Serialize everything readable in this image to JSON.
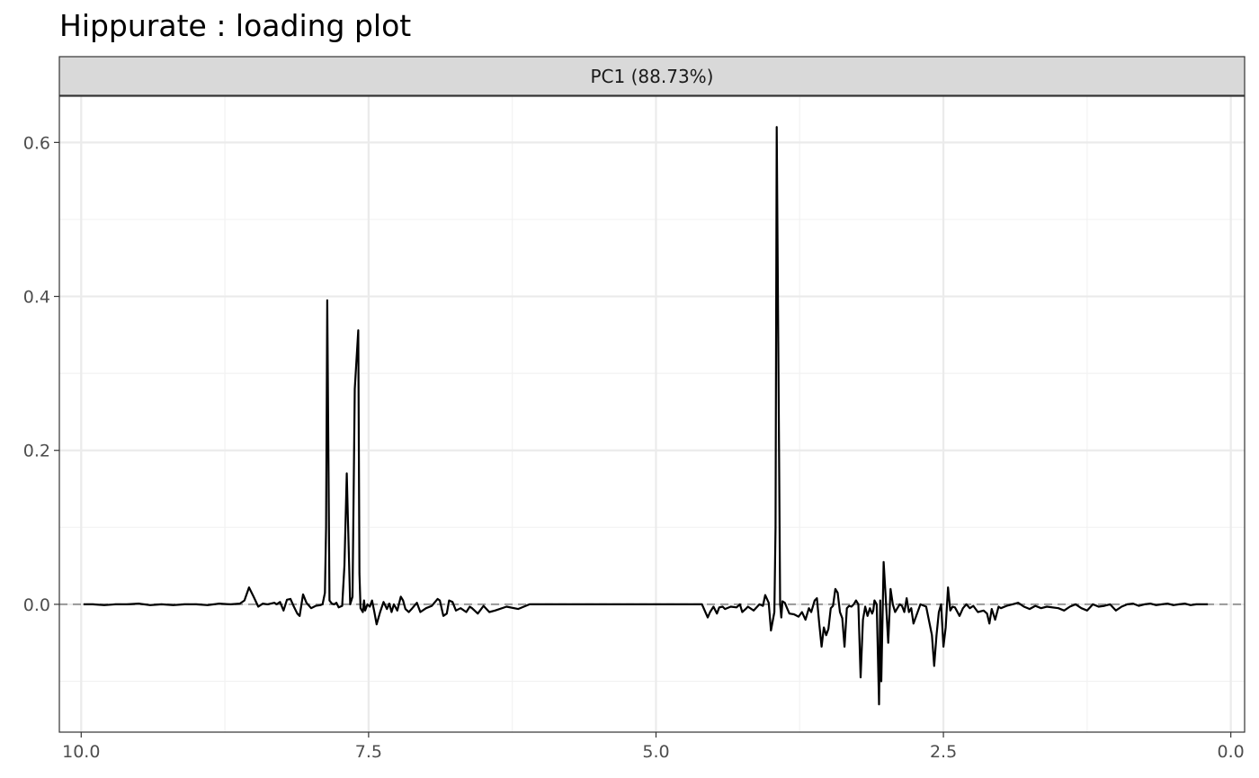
{
  "chart_data": {
    "type": "line",
    "title": "Hippurate : loading plot",
    "facet_label": "PC1 (88.73%)",
    "xlabel": "",
    "ylabel": "",
    "x_reversed": true,
    "xlim": [
      10.19,
      -0.12
    ],
    "ylim": [
      -0.166,
      0.66
    ],
    "x_ticks": [
      10.0,
      7.5,
      5.0,
      2.5,
      0.0
    ],
    "x_tick_labels": [
      "10.0",
      "7.5",
      "5.0",
      "2.5",
      "0.0"
    ],
    "x_minor_ticks": [
      8.75,
      6.25,
      3.75,
      1.25
    ],
    "y_ticks": [
      0.0,
      0.2,
      0.4,
      0.6
    ],
    "y_tick_labels": [
      "0.0",
      "0.2",
      "0.4",
      "0.6"
    ],
    "y_minor_ticks": [
      -0.1,
      0.1,
      0.3,
      0.5
    ],
    "grid": true,
    "reference_line": {
      "y": 0,
      "style": "dashed",
      "color": "#999999"
    },
    "colors": {
      "line": "#000000",
      "strip": "#d9d9d9",
      "grid": "#ebebeb",
      "panel_border": "#333333"
    },
    "series": [
      {
        "x": [
          9.98,
          9.9,
          9.8,
          9.7,
          9.6,
          9.5,
          9.4,
          9.3,
          9.2,
          9.1,
          9.0,
          8.9,
          8.8,
          8.7,
          8.62,
          8.58,
          8.54,
          8.5,
          8.46,
          8.42,
          8.38,
          8.32,
          8.3,
          8.27,
          8.24,
          8.21,
          8.18,
          8.15,
          8.12,
          8.1,
          8.07,
          8.04,
          8.0,
          7.96,
          7.92,
          7.9,
          7.88,
          7.87,
          7.86,
          7.84,
          7.82,
          7.8,
          7.78,
          7.76,
          7.73,
          7.71,
          7.69,
          7.68,
          7.66,
          7.64,
          7.62,
          7.59,
          7.58,
          7.57,
          7.55,
          7.54,
          7.53,
          7.51,
          7.49,
          7.47,
          7.45,
          7.43,
          7.4,
          7.37,
          7.34,
          7.32,
          7.3,
          7.28,
          7.25,
          7.22,
          7.2,
          7.18,
          7.15,
          7.12,
          7.08,
          7.05,
          7.0,
          6.95,
          6.9,
          6.88,
          6.85,
          6.82,
          6.8,
          6.77,
          6.74,
          6.7,
          6.65,
          6.62,
          6.6,
          6.55,
          6.5,
          6.45,
          6.4,
          6.3,
          6.2,
          6.1,
          6.05,
          6.0,
          5.5,
          5.0,
          4.6,
          4.55,
          4.53,
          4.5,
          4.47,
          4.45,
          4.42,
          4.4,
          4.35,
          4.3,
          4.27,
          4.25,
          4.22,
          4.2,
          4.15,
          4.1,
          4.07,
          4.05,
          4.02,
          4.0,
          3.97,
          3.96,
          3.95,
          3.93,
          3.92,
          3.91,
          3.9,
          3.88,
          3.86,
          3.84,
          3.8,
          3.76,
          3.73,
          3.7,
          3.67,
          3.65,
          3.62,
          3.6,
          3.58,
          3.56,
          3.54,
          3.52,
          3.5,
          3.48,
          3.46,
          3.44,
          3.42,
          3.4,
          3.38,
          3.36,
          3.34,
          3.32,
          3.3,
          3.28,
          3.26,
          3.24,
          3.22,
          3.2,
          3.18,
          3.16,
          3.14,
          3.12,
          3.11,
          3.1,
          3.08,
          3.06,
          3.05,
          3.04,
          3.02,
          3.0,
          2.98,
          2.96,
          2.94,
          2.92,
          2.9,
          2.88,
          2.86,
          2.84,
          2.82,
          2.8,
          2.78,
          2.76,
          2.7,
          2.65,
          2.6,
          2.58,
          2.56,
          2.54,
          2.52,
          2.5,
          2.48,
          2.46,
          2.44,
          2.42,
          2.4,
          2.36,
          2.33,
          2.3,
          2.27,
          2.24,
          2.2,
          2.15,
          2.12,
          2.1,
          2.08,
          2.05,
          2.02,
          2.0,
          1.95,
          1.9,
          1.85,
          1.8,
          1.75,
          1.7,
          1.65,
          1.6,
          1.5,
          1.45,
          1.4,
          1.35,
          1.3,
          1.25,
          1.2,
          1.15,
          1.1,
          1.05,
          1.0,
          0.95,
          0.9,
          0.85,
          0.8,
          0.75,
          0.7,
          0.65,
          0.6,
          0.55,
          0.5,
          0.45,
          0.4,
          0.35,
          0.3,
          0.25,
          0.2
        ],
        "y": [
          0.0,
          0.0,
          -0.001,
          0.0,
          0.0,
          0.001,
          -0.001,
          0.0,
          -0.001,
          0.0,
          0.0,
          -0.001,
          0.001,
          0.0,
          0.001,
          0.005,
          0.022,
          0.01,
          -0.003,
          0.001,
          0.0,
          0.002,
          0.0,
          0.003,
          -0.008,
          0.006,
          0.007,
          -0.003,
          -0.012,
          -0.015,
          0.013,
          0.002,
          -0.005,
          -0.002,
          -0.001,
          0.0,
          0.015,
          0.1,
          0.395,
          0.005,
          0.001,
          0.0,
          0.002,
          -0.004,
          -0.002,
          0.05,
          0.17,
          0.11,
          0.0,
          0.01,
          0.28,
          0.356,
          0.04,
          -0.005,
          -0.01,
          0.005,
          -0.008,
          0.0,
          -0.003,
          0.005,
          -0.01,
          -0.026,
          -0.01,
          0.003,
          -0.006,
          0.001,
          -0.01,
          0.0,
          -0.008,
          0.01,
          0.005,
          -0.006,
          -0.01,
          -0.005,
          0.002,
          -0.01,
          -0.005,
          -0.002,
          0.007,
          0.005,
          -0.015,
          -0.012,
          0.005,
          0.003,
          -0.008,
          -0.005,
          -0.01,
          -0.003,
          -0.005,
          -0.012,
          -0.002,
          -0.01,
          -0.008,
          -0.003,
          -0.006,
          0.0,
          0.0,
          0.0,
          0.0,
          0.0,
          0.0,
          -0.017,
          -0.01,
          -0.003,
          -0.012,
          -0.004,
          -0.003,
          -0.006,
          -0.003,
          -0.004,
          0.0,
          -0.01,
          -0.006,
          -0.003,
          -0.008,
          0.0,
          -0.002,
          0.012,
          0.002,
          -0.034,
          -0.01,
          0.1,
          0.62,
          0.2,
          0.0,
          -0.017,
          0.004,
          0.002,
          -0.005,
          -0.012,
          -0.013,
          -0.016,
          -0.01,
          -0.02,
          -0.005,
          -0.01,
          0.005,
          0.008,
          -0.025,
          -0.055,
          -0.03,
          -0.04,
          -0.032,
          -0.005,
          -0.002,
          0.02,
          0.015,
          -0.01,
          -0.018,
          -0.055,
          -0.005,
          -0.002,
          -0.003,
          0.0,
          0.005,
          0.0,
          -0.095,
          -0.02,
          -0.003,
          -0.015,
          -0.005,
          -0.012,
          -0.008,
          0.005,
          0.0,
          -0.13,
          0.005,
          -0.1,
          0.055,
          0.005,
          -0.05,
          0.02,
          0.0,
          -0.01,
          -0.005,
          0.0,
          -0.002,
          -0.01,
          0.008,
          -0.01,
          -0.005,
          -0.025,
          0.0,
          -0.003,
          -0.04,
          -0.08,
          -0.04,
          -0.01,
          0.0,
          -0.055,
          -0.03,
          0.022,
          -0.008,
          -0.003,
          -0.004,
          -0.015,
          -0.005,
          0.0,
          -0.005,
          -0.002,
          -0.01,
          -0.008,
          -0.012,
          -0.025,
          -0.006,
          -0.02,
          -0.003,
          -0.005,
          -0.002,
          0.0,
          0.002,
          -0.003,
          -0.006,
          -0.002,
          -0.005,
          -0.003,
          -0.005,
          -0.008,
          -0.003,
          0.0,
          -0.005,
          -0.008,
          0.0,
          -0.003,
          -0.002,
          0.0,
          -0.008,
          -0.003,
          0.0,
          0.001,
          -0.002,
          0.0,
          0.001,
          -0.001,
          0.0,
          0.001,
          -0.001,
          0.0,
          0.001,
          -0.001,
          0.0,
          0.0,
          0.0
        ]
      }
    ]
  }
}
